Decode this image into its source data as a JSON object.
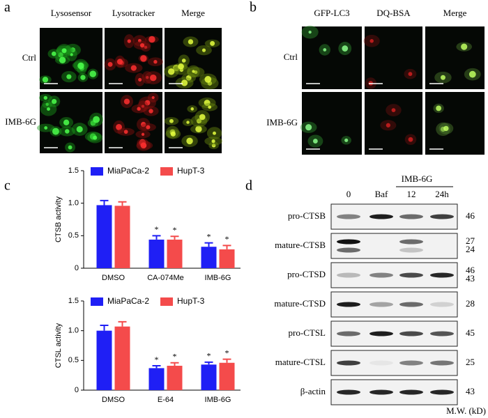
{
  "panel_a": {
    "label": "a",
    "columns": [
      "Lysosensor",
      "Lysotracker",
      "Merge"
    ],
    "rows": [
      "Ctrl",
      "IMB-6G"
    ]
  },
  "panel_b": {
    "label": "b",
    "columns": [
      "GFP-LC3",
      "DQ-BSA",
      "Merge"
    ],
    "rows": [
      "Ctrl",
      "IMB-6G"
    ]
  },
  "panel_c": {
    "label": "c"
  },
  "chart_data": [
    {
      "type": "bar",
      "y_label": "CTSB activity",
      "categories": [
        "DMSO",
        "CA-074Me",
        "IMB-6G"
      ],
      "series": [
        {
          "name": "MiaPaCa-2",
          "color": "#1f1ff5",
          "values": [
            0.97,
            0.44,
            0.33
          ],
          "errors": [
            0.07,
            0.06,
            0.06
          ],
          "annotations": [
            null,
            "*",
            "*"
          ]
        },
        {
          "name": "HupT-3",
          "color": "#f44b4b",
          "values": [
            0.96,
            0.44,
            0.29
          ],
          "errors": [
            0.06,
            0.05,
            0.06
          ],
          "annotations": [
            null,
            "*",
            "*"
          ]
        }
      ],
      "ylim": [
        0,
        1.5
      ],
      "yticks": [
        0,
        0.5,
        {
          "value": 1,
          "label": "1.0"
        },
        1.5
      ]
    },
    {
      "type": "bar",
      "y_label": "CTSL activity",
      "categories": [
        "DMSO",
        "E-64",
        "IMB-6G"
      ],
      "series": [
        {
          "name": "MiaPaCa-2",
          "color": "#1f1ff5",
          "values": [
            1.0,
            0.37,
            0.43
          ],
          "errors": [
            0.09,
            0.04,
            0.04
          ],
          "annotations": [
            null,
            "*",
            "*"
          ]
        },
        {
          "name": "HupT-3",
          "color": "#f44b4b",
          "values": [
            1.07,
            0.41,
            0.46
          ],
          "errors": [
            0.08,
            0.05,
            0.06
          ],
          "annotations": [
            null,
            "*",
            "*"
          ]
        }
      ],
      "ylim": [
        0,
        1.5
      ],
      "yticks": [
        0,
        0.5,
        {
          "value": 1,
          "label": "1.0"
        },
        1.5
      ]
    }
  ],
  "panel_d": {
    "label": "d",
    "treatment_header": "IMB-6G",
    "lanes": [
      "0",
      "Baf",
      "12",
      "24h"
    ],
    "rows": [
      {
        "label": "pro-CTSB",
        "mw": [
          46
        ]
      },
      {
        "label": "mature-CTSB",
        "mw": [
          27,
          24
        ]
      },
      {
        "label": "pro-CTSD",
        "mw": [
          46,
          43
        ]
      },
      {
        "label": "mature-CTSD",
        "mw": [
          28
        ]
      },
      {
        "label": "pro-CTSL",
        "mw": [
          45
        ]
      },
      {
        "label": "mature-CTSL",
        "mw": [
          25
        ]
      },
      {
        "label": "β-actin",
        "mw": [
          43
        ]
      }
    ],
    "mw_label": "M.W. (kD)"
  }
}
